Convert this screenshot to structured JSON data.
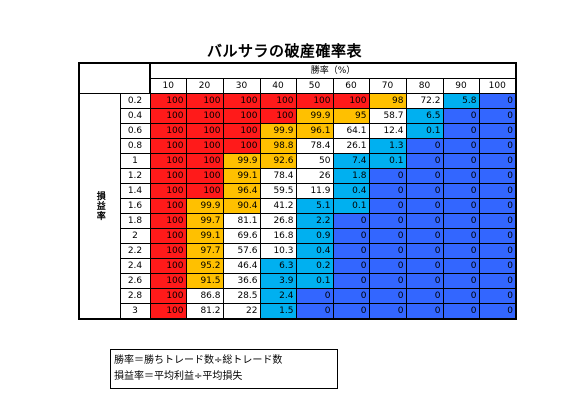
{
  "title": "バルサラの破産確率表",
  "col_group_label": "勝率（%）",
  "row_group_label": "損益率",
  "win_rates": [
    "10",
    "20",
    "30",
    "40",
    "50",
    "60",
    "70",
    "80",
    "90",
    "100"
  ],
  "colors": {
    "red": "#ff1a1a",
    "orange": "#ffc000",
    "white": "#ffffff",
    "cyan": "#00b0f0",
    "blue": "#3366ff"
  },
  "rows": [
    {
      "ratio": "0.2",
      "values": [
        "100",
        "100",
        "100",
        "100",
        "100",
        "100",
        "98",
        "72.2",
        "5.8",
        "0"
      ],
      "colors": [
        "R",
        "R",
        "R",
        "R",
        "R",
        "R",
        "O",
        "W",
        "C",
        "B"
      ]
    },
    {
      "ratio": "0.4",
      "values": [
        "100",
        "100",
        "100",
        "100",
        "99.9",
        "95",
        "58.7",
        "6.5",
        "0",
        "0"
      ],
      "colors": [
        "R",
        "R",
        "R",
        "R",
        "O",
        "O",
        "W",
        "C",
        "B",
        "B"
      ]
    },
    {
      "ratio": "0.6",
      "values": [
        "100",
        "100",
        "100",
        "99.9",
        "96.1",
        "64.1",
        "12.4",
        "0.1",
        "0",
        "0"
      ],
      "colors": [
        "R",
        "R",
        "R",
        "O",
        "O",
        "W",
        "W",
        "C",
        "B",
        "B"
      ]
    },
    {
      "ratio": "0.8",
      "values": [
        "100",
        "100",
        "100",
        "98.8",
        "78.4",
        "26.1",
        "1.3",
        "0",
        "0",
        "0"
      ],
      "colors": [
        "R",
        "R",
        "R",
        "O",
        "W",
        "W",
        "C",
        "B",
        "B",
        "B"
      ]
    },
    {
      "ratio": "1",
      "values": [
        "100",
        "100",
        "99.9",
        "92.6",
        "50",
        "7.4",
        "0.1",
        "0",
        "0",
        "0"
      ],
      "colors": [
        "R",
        "R",
        "O",
        "O",
        "W",
        "C",
        "C",
        "B",
        "B",
        "B"
      ]
    },
    {
      "ratio": "1.2",
      "values": [
        "100",
        "100",
        "99.1",
        "78.4",
        "26",
        "1.8",
        "0",
        "0",
        "0",
        "0"
      ],
      "colors": [
        "R",
        "R",
        "O",
        "W",
        "W",
        "C",
        "B",
        "B",
        "B",
        "B"
      ]
    },
    {
      "ratio": "1.4",
      "values": [
        "100",
        "100",
        "96.4",
        "59.5",
        "11.9",
        "0.4",
        "0",
        "0",
        "0",
        "0"
      ],
      "colors": [
        "R",
        "R",
        "O",
        "W",
        "W",
        "C",
        "B",
        "B",
        "B",
        "B"
      ]
    },
    {
      "ratio": "1.6",
      "values": [
        "100",
        "99.9",
        "90.4",
        "41.2",
        "5.1",
        "0.1",
        "0",
        "0",
        "0",
        "0"
      ],
      "colors": [
        "R",
        "O",
        "O",
        "W",
        "C",
        "C",
        "B",
        "B",
        "B",
        "B"
      ]
    },
    {
      "ratio": "1.8",
      "values": [
        "100",
        "99.7",
        "81.1",
        "26.8",
        "2.2",
        "0",
        "0",
        "0",
        "0",
        "0"
      ],
      "colors": [
        "R",
        "O",
        "W",
        "W",
        "C",
        "B",
        "B",
        "B",
        "B",
        "B"
      ]
    },
    {
      "ratio": "2",
      "values": [
        "100",
        "99.1",
        "69.6",
        "16.8",
        "0.9",
        "0",
        "0",
        "0",
        "0",
        "0"
      ],
      "colors": [
        "R",
        "O",
        "W",
        "W",
        "C",
        "B",
        "B",
        "B",
        "B",
        "B"
      ]
    },
    {
      "ratio": "2.2",
      "values": [
        "100",
        "97.7",
        "57.6",
        "10.3",
        "0.4",
        "0",
        "0",
        "0",
        "0",
        "0"
      ],
      "colors": [
        "R",
        "O",
        "W",
        "W",
        "C",
        "B",
        "B",
        "B",
        "B",
        "B"
      ]
    },
    {
      "ratio": "2.4",
      "values": [
        "100",
        "95.2",
        "46.4",
        "6.3",
        "0.2",
        "0",
        "0",
        "0",
        "0",
        "0"
      ],
      "colors": [
        "R",
        "O",
        "W",
        "C",
        "C",
        "B",
        "B",
        "B",
        "B",
        "B"
      ]
    },
    {
      "ratio": "2.6",
      "values": [
        "100",
        "91.5",
        "36.6",
        "3.9",
        "0.1",
        "0",
        "0",
        "0",
        "0",
        "0"
      ],
      "colors": [
        "R",
        "O",
        "W",
        "C",
        "C",
        "B",
        "B",
        "B",
        "B",
        "B"
      ]
    },
    {
      "ratio": "2.8",
      "values": [
        "100",
        "86.8",
        "28.5",
        "2.4",
        "0",
        "0",
        "0",
        "0",
        "0",
        "0"
      ],
      "colors": [
        "R",
        "W",
        "W",
        "C",
        "B",
        "B",
        "B",
        "B",
        "B",
        "B"
      ]
    },
    {
      "ratio": "3",
      "values": [
        "100",
        "81.2",
        "22",
        "1.5",
        "0",
        "0",
        "0",
        "0",
        "0",
        "0"
      ],
      "colors": [
        "R",
        "W",
        "W",
        "C",
        "B",
        "B",
        "B",
        "B",
        "B",
        "B"
      ]
    }
  ],
  "legend": {
    "line1": "勝率＝勝ちトレード数÷総トレード数",
    "line2": "損益率＝平均利益÷平均損失"
  }
}
